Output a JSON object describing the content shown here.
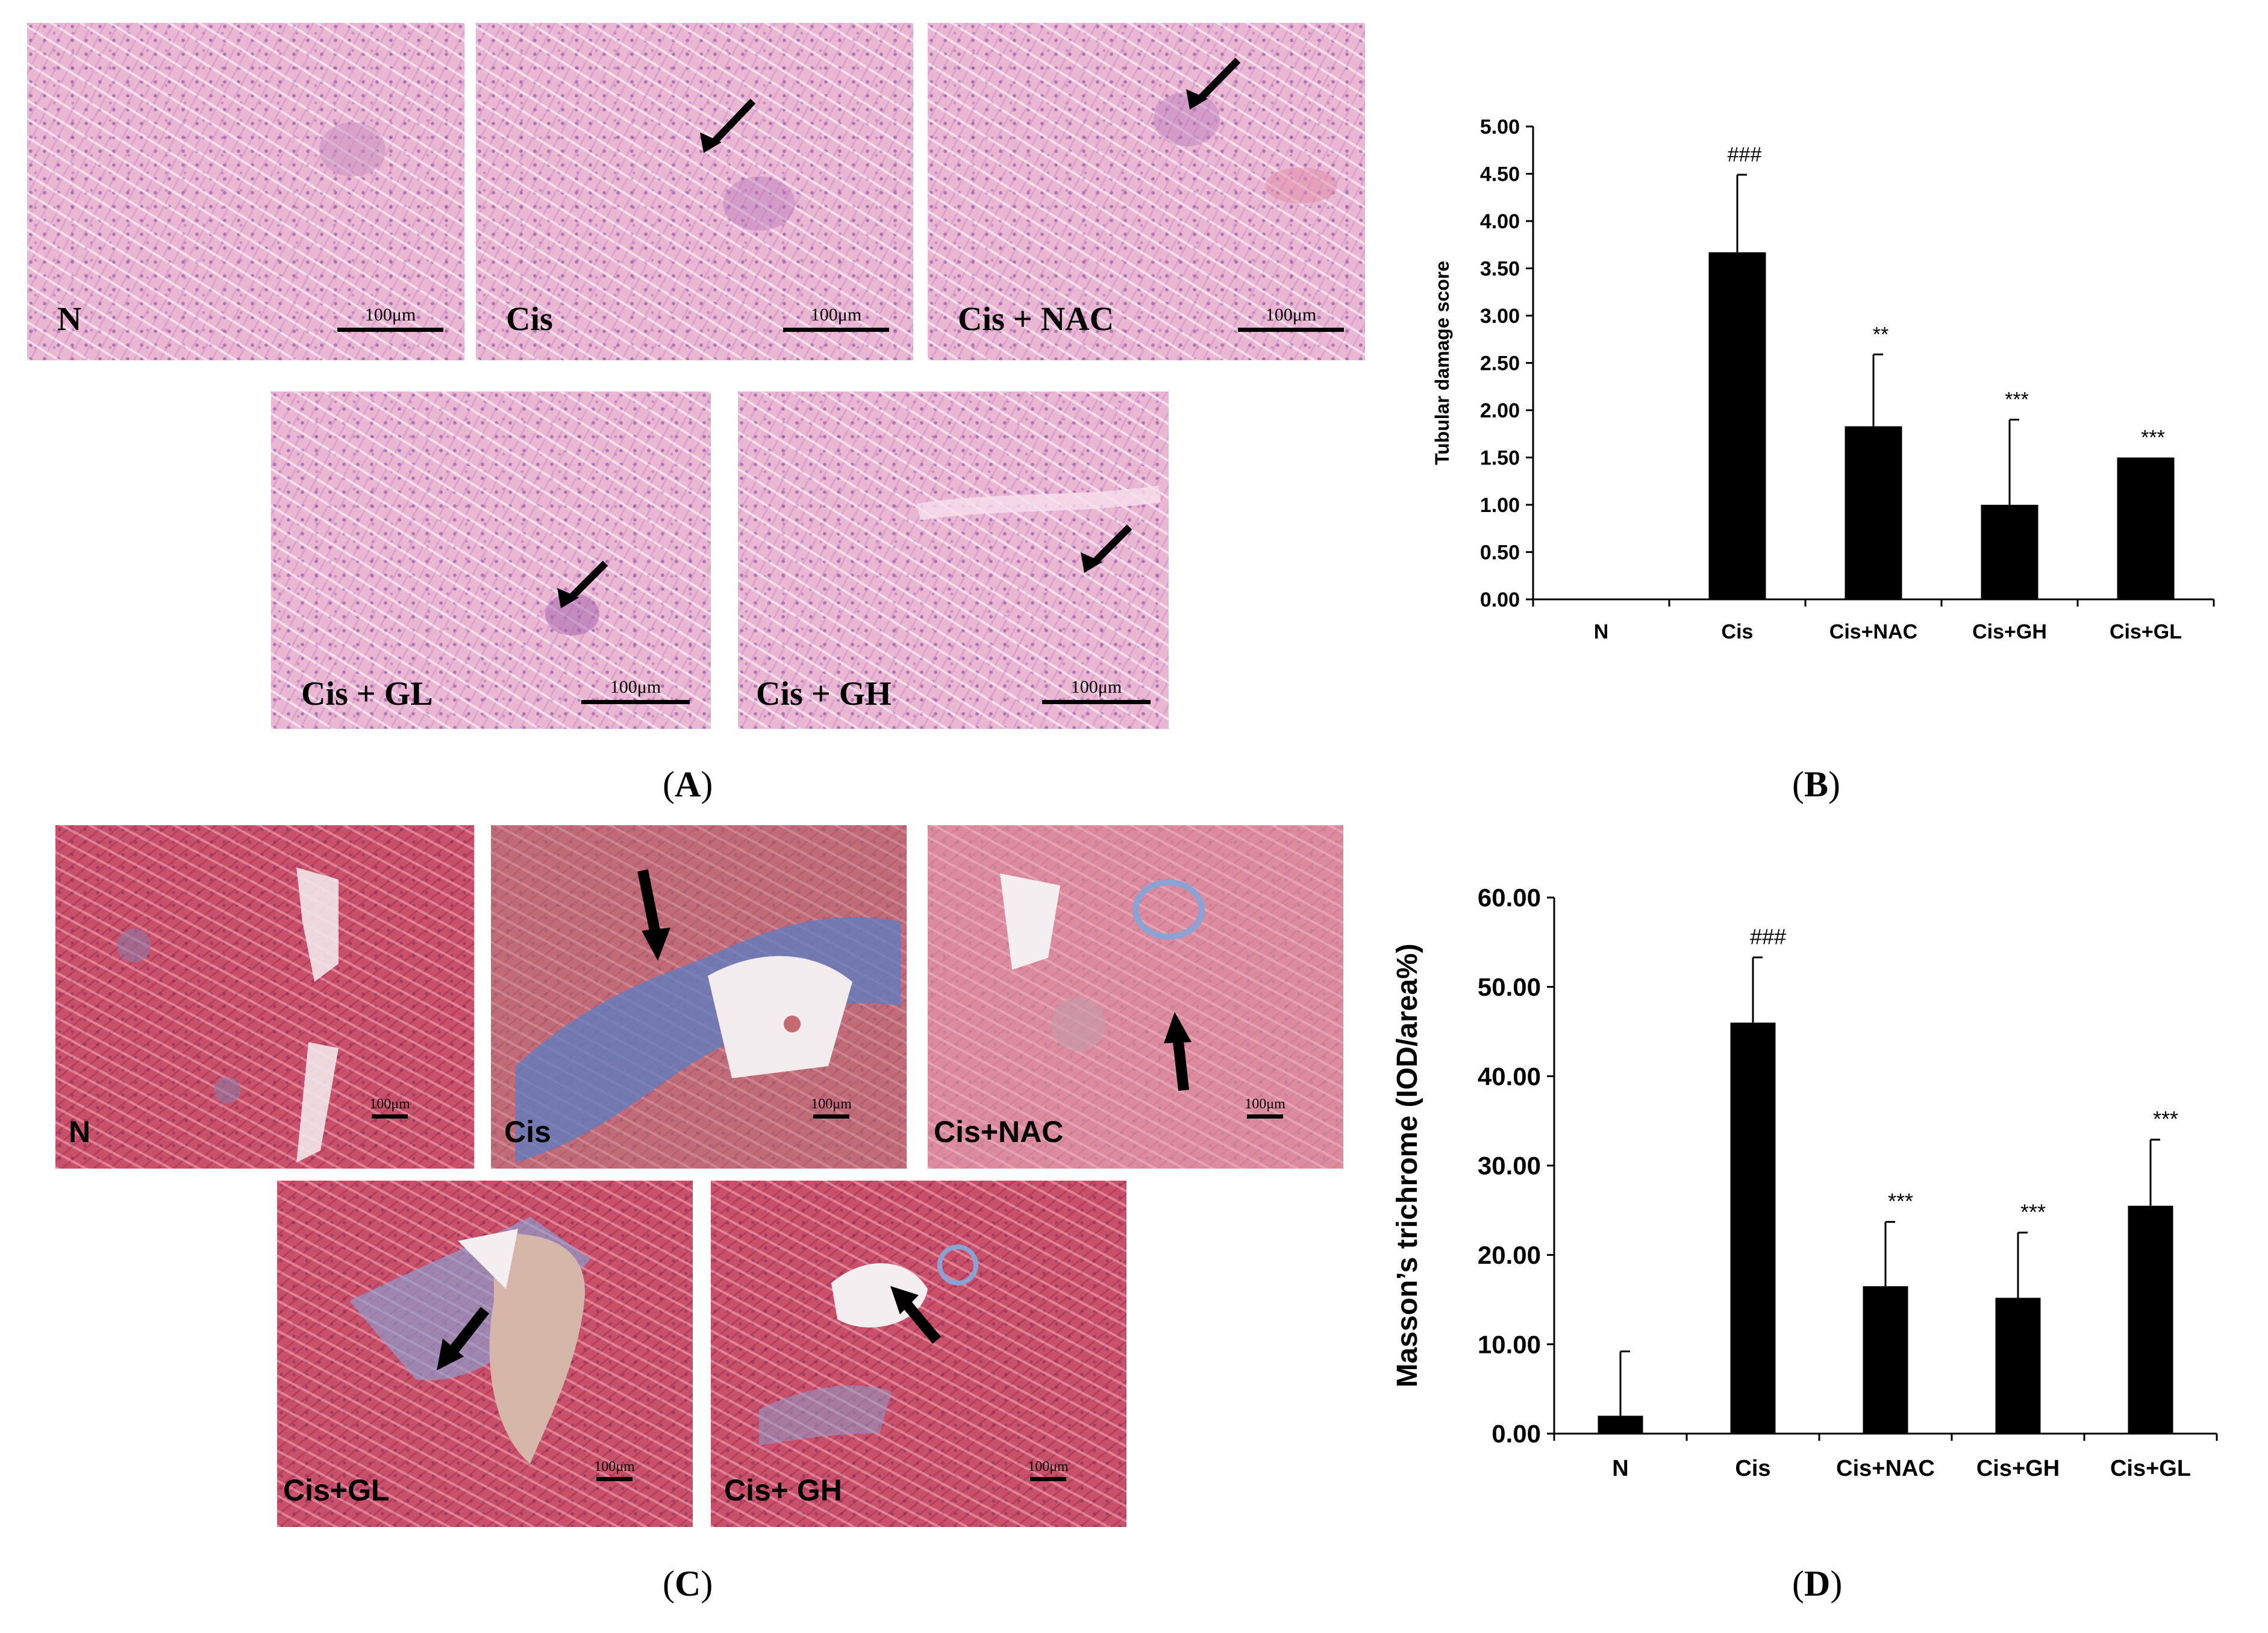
{
  "panel_a": {
    "images": [
      {
        "label": "N",
        "scale": "100μm",
        "arrow": false
      },
      {
        "label": "Cis",
        "scale": "100μm",
        "arrow": true
      },
      {
        "label": "Cis + NAC",
        "scale": "100μm",
        "arrow": true
      },
      {
        "label": "Cis + GL",
        "scale": "100μm",
        "arrow": true
      },
      {
        "label": "Cis + GH",
        "scale": "100μm",
        "arrow": true
      }
    ],
    "caption": {
      "open": "(",
      "letter": "A",
      "close": ")"
    }
  },
  "panel_c": {
    "images": [
      {
        "label": "N",
        "scale": "100μm",
        "arrow": false
      },
      {
        "label": "Cis",
        "scale": "100μm",
        "arrow": true
      },
      {
        "label": "Cis+NAC",
        "scale": "100μm",
        "arrow": true
      },
      {
        "label": "Cis+GL",
        "scale": "100μm",
        "arrow": true
      },
      {
        "label": "Cis+ GH",
        "scale": "100μm",
        "arrow": true
      }
    ],
    "caption": {
      "open": "(",
      "letter": "C",
      "close": ")"
    }
  },
  "panel_b_caption": {
    "open": "(",
    "letter": "B",
    "close": ")"
  },
  "panel_d_caption": {
    "open": "(",
    "letter": "D",
    "close": ")"
  },
  "colors": {
    "bar": "#000000",
    "he_stain": "#eab7d3",
    "masson_stain": "#c9506a",
    "fibrosis": "#5b7fc4"
  },
  "chart_data": [
    {
      "type": "bar",
      "panel": "B",
      "title": "",
      "xlabel": "",
      "ylabel": "Tubular damage score",
      "categories": [
        "N",
        "Cis",
        "Cis+NAC",
        "Cis+GH",
        "Cis+GL"
      ],
      "values": [
        0,
        3.67,
        1.83,
        1.0,
        1.5
      ],
      "errors": [
        0,
        0.82,
        0.76,
        0.9,
        0
      ],
      "significance": [
        "",
        "###",
        "**",
        "***",
        "***"
      ],
      "ylim": [
        0,
        5
      ],
      "yticks": [
        "0.00",
        "0.50",
        "1.00",
        "1.50",
        "2.00",
        "2.50",
        "3.00",
        "3.50",
        "4.00",
        "4.50",
        "5.00"
      ],
      "grid": false,
      "legend": "none"
    },
    {
      "type": "bar",
      "panel": "D",
      "title": "",
      "xlabel": "",
      "ylabel": "Masson’s trichrome (IOD/area%)",
      "categories": [
        "N",
        "Cis",
        "Cis+NAC",
        "Cis+GH",
        "Cis+GL"
      ],
      "values": [
        2.0,
        46.0,
        16.5,
        15.2,
        25.5
      ],
      "errors": [
        7.2,
        7.3,
        7.2,
        7.3,
        7.4
      ],
      "significance": [
        "",
        "###",
        "***",
        "***",
        "***"
      ],
      "ylim": [
        0,
        60
      ],
      "yticks": [
        "0.00",
        "10.00",
        "20.00",
        "30.00",
        "40.00",
        "50.00",
        "60.00"
      ],
      "grid": false,
      "legend": "none"
    }
  ]
}
